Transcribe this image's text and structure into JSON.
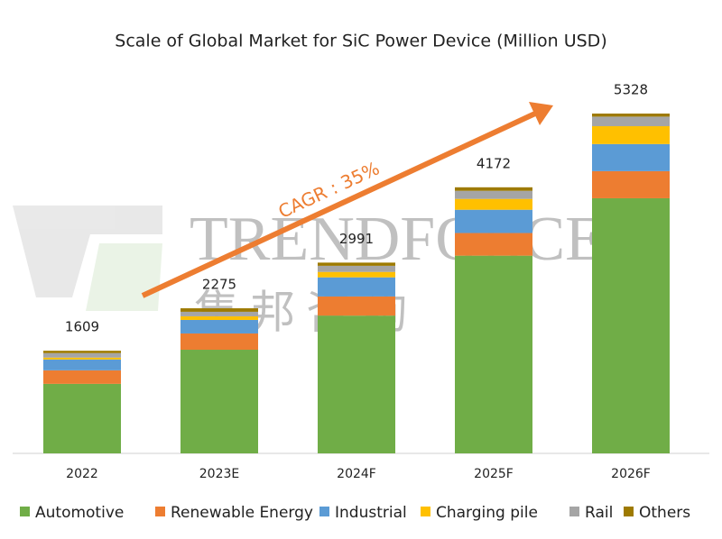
{
  "chart_data": {
    "type": "stacked_bar",
    "title": "Scale of Global Market for SiC Power Device (Million USD)",
    "categories": [
      "2022",
      "2023E",
      "2024F",
      "2025F",
      "2026F"
    ],
    "totals": [
      1609,
      2275,
      2991,
      4172,
      5328
    ],
    "series": [
      {
        "name": "Automotive",
        "color": "#70ad47",
        "values": [
          1090,
          1625,
          2160,
          3100,
          4000
        ]
      },
      {
        "name": "Renewable Energy",
        "color": "#ed7d31",
        "values": [
          212,
          255,
          300,
          355,
          425
        ]
      },
      {
        "name": "Industrial",
        "color": "#5b9bd5",
        "values": [
          170,
          212,
          300,
          365,
          425
        ]
      },
      {
        "name": "Charging pile",
        "color": "#ffc000",
        "values": [
          30,
          57,
          85,
          170,
          280
        ]
      },
      {
        "name": "Rail",
        "color": "#a5a5a5",
        "values": [
          70,
          71,
          96,
          127,
          150
        ]
      },
      {
        "name": "Others",
        "color": "#9e7a00",
        "values": [
          37,
          55,
          50,
          55,
          48
        ]
      }
    ],
    "annotation": "CAGR : 35%",
    "watermark": [
      "TRENDFORCE",
      "集邦咨詢"
    ]
  }
}
